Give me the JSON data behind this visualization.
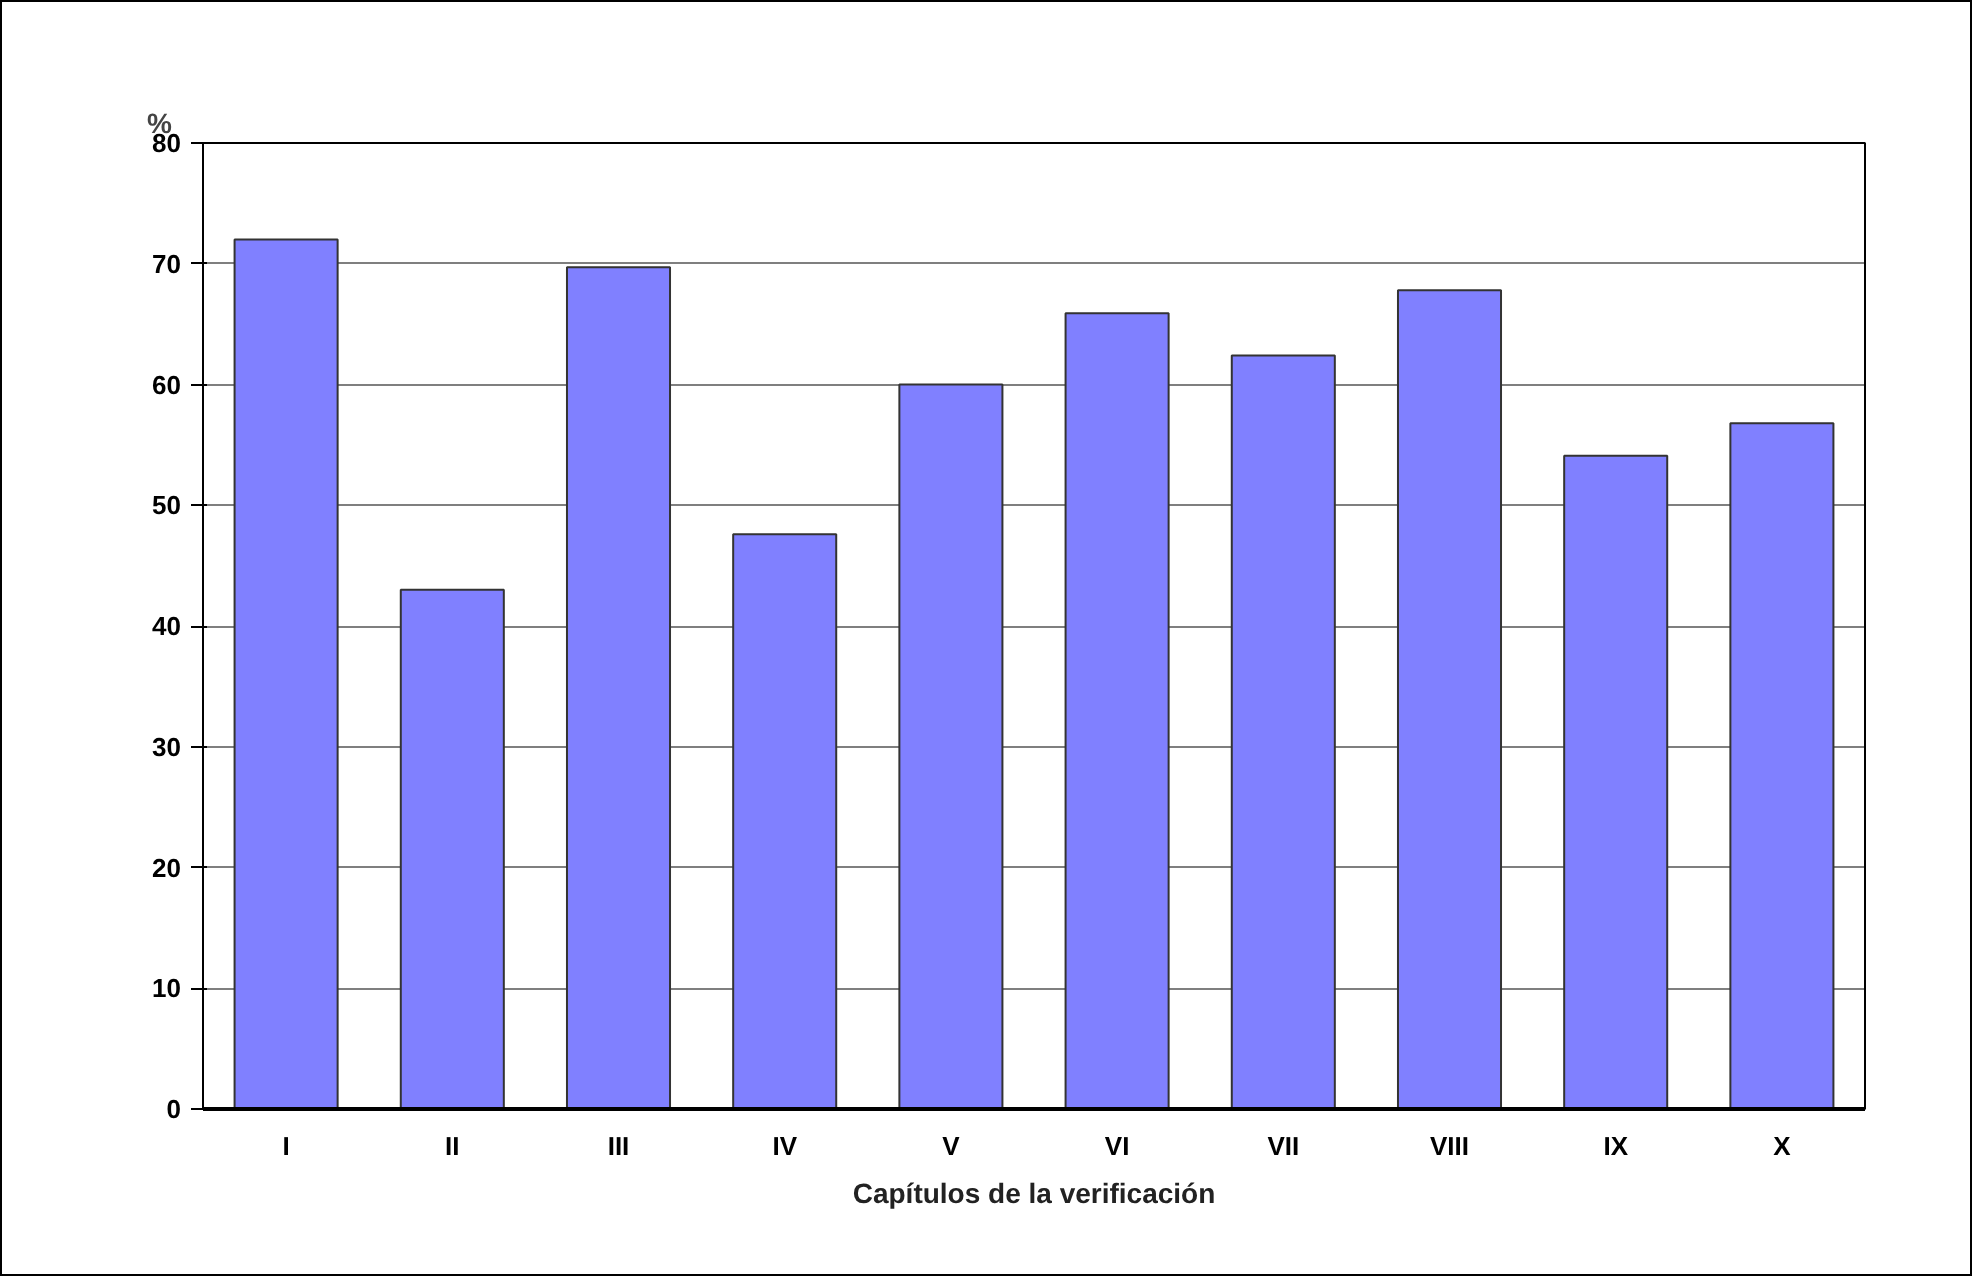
{
  "chart_data": {
    "type": "bar",
    "xlabel": "Capítulos de la verificación",
    "ylabel": "%",
    "categories": [
      "I",
      "II",
      "III",
      "IV",
      "V",
      "VI",
      "VII",
      "VIII",
      "IX",
      "X"
    ],
    "values": [
      72,
      43,
      69.7,
      47.6,
      60,
      65.9,
      62.4,
      67.8,
      54.1,
      56.8
    ],
    "color": "#8080ff",
    "ylim": [
      0,
      80
    ],
    "yticks": [
      0,
      10,
      20,
      30,
      40,
      50,
      60,
      70,
      80
    ],
    "grid": "y"
  }
}
